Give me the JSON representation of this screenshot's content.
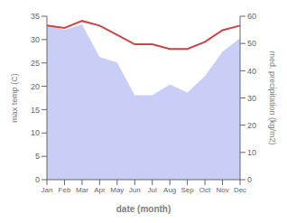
{
  "chart_data": {
    "type": "line",
    "xlabel": "date (month)",
    "ylabel": "max temp (C)",
    "y2label": "med. precipitation (kg/m2)",
    "categories": [
      "Jan",
      "Feb",
      "Mar",
      "Apr",
      "May",
      "Jun",
      "Jul",
      "Aug",
      "Sep",
      "Oct",
      "Nov",
      "Dec"
    ],
    "series": [
      {
        "type": "area",
        "axis": "y2",
        "color": "#c8cef5",
        "values": [
          57,
          55,
          57,
          45,
          43,
          31,
          31,
          35,
          32,
          38,
          47,
          52
        ]
      },
      {
        "type": "line",
        "color": "#cc4444",
        "values": [
          33,
          32.5,
          34,
          33,
          31,
          29,
          29,
          28,
          28,
          29.5,
          32,
          33
        ]
      }
    ],
    "ylim": [
      0,
      35
    ],
    "yticks": [
      0,
      5,
      10,
      15,
      20,
      25,
      30,
      35
    ],
    "y2lim": [
      0,
      60
    ],
    "y2ticks": [
      0,
      10,
      20,
      30,
      40,
      50,
      60
    ],
    "grid": false
  }
}
